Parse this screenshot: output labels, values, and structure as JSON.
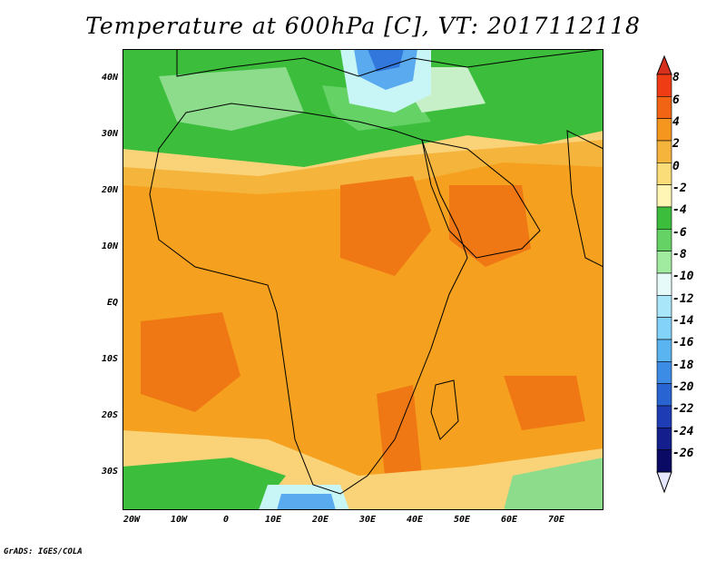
{
  "title": "Temperature at 600hPa [C], VT: 2017112118",
  "credit": "GrADS: IGES/COLA",
  "map": {
    "lat_labels": [
      "40N",
      "30N",
      "20N",
      "10N",
      "EQ",
      "10S",
      "20S",
      "30S"
    ],
    "lon_labels": [
      "20W",
      "10W",
      "0",
      "10E",
      "20E",
      "30E",
      "40E",
      "50E",
      "60E",
      "70E"
    ]
  },
  "colorbar": {
    "labels": [
      "8",
      "6",
      "4",
      "2",
      "0",
      "-2",
      "-4",
      "-6",
      "-8",
      "-10",
      "-12",
      "-14",
      "-16",
      "-18",
      "-20",
      "-22",
      "-24",
      "-26"
    ],
    "colors": [
      "#d7301f",
      "#f03c14",
      "#f06414",
      "#f5961e",
      "#f5b43c",
      "#fadc78",
      "#fff5b4",
      "#3cbe3c",
      "#64d264",
      "#a0eba0",
      "#e6fafa",
      "#aae6fa",
      "#82d2fa",
      "#5ab4f0",
      "#3c8ce6",
      "#2864d2",
      "#1e3cb4",
      "#141e8c",
      "#0a0a64",
      "#e6e6ff"
    ]
  },
  "field_colors": {
    "warm_orange": "#f5a01e",
    "hot_orange": "#f07814",
    "light_orange": "#f5b43c",
    "yellow": "#fad278",
    "pale_yellow": "#fff0a0",
    "green": "#3cbe3c",
    "light_green": "#8cdc8c",
    "pale_green": "#c8f0c8",
    "cyan": "#c8f5f5",
    "blue": "#5aaaf0",
    "dark_blue": "#3278dc"
  }
}
